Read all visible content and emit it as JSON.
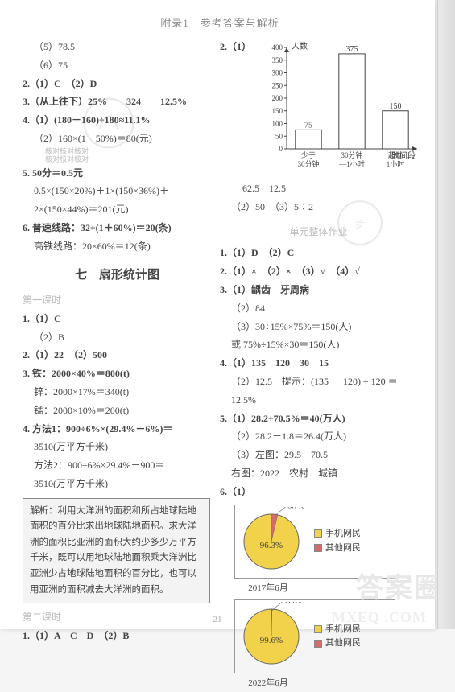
{
  "header": "附录1　参考答案与解析",
  "left": {
    "l1": "（5）78.5",
    "l2": "（6）75",
    "q2": "2.（1）C　（2）D",
    "q3": "3.（从上往下）25%　　324　　12.5%",
    "q4a": "4.（1）(180－160)÷180≈11.1%",
    "q4b": "（2）160×(1－50%)＝80(元)",
    "q4b_note1": "核对核对核对",
    "q4b_note2": "核对核对核对",
    "q5a": "5. 50分＝0.5元",
    "q5b": "0.5×(150×20%)＋1×(150×36%)＋",
    "q5c": "2×(150×44%)＝201(元)",
    "q6a": "6. 普速线路：32÷(1＋60%)＝20(条)",
    "q6b": "高铁线路：20×60%＝12(条)",
    "section": "七　扇形统计图",
    "k1": "第一课时",
    "p1a": "1.（1）C",
    "p1b": "（2）B",
    "p2": "2.（1）22　（2）500",
    "p3a": "3. 铁：2000×40%＝800(t)",
    "p3b": "锌：2000×17%＝340(t)",
    "p3c": "锰：2000×10%＝200(t)",
    "p4a": "4. 方法1：900÷6%×(29.4%－6%)＝",
    "p4b": "3510(万平方千米)",
    "p4c": "方法2：900÷6%×29.4%－900＝",
    "p4d": "3510(万平方千米)",
    "note": "解析：利用大洋洲的面积和所占地球陆地面积的百分比求出地球陆地面积。求大洋洲的面积比亚洲的面积大约少多少万平方千米，既可以用地球陆地面积乘大洋洲比亚洲少占地球陆地面积的百分比，也可以用亚洲的面积减去大洋洲的面积。",
    "k2": "第二课时",
    "p21": "1.（1）A　C　D　（2）B"
  },
  "right": {
    "q2label": "2.（1）",
    "barchart": {
      "ylab": "人数",
      "xlab": "时间段",
      "ymax": 400,
      "ystep": 50,
      "yticks": [
        "400",
        "350",
        "300",
        "250",
        "200",
        "150",
        "100",
        "50",
        "0"
      ],
      "bars": [
        {
          "cat1": "少于",
          "cat2": "30分钟",
          "val": 75,
          "lbl": "75",
          "color": "#ffffff"
        },
        {
          "cat1": "30分钟",
          "cat2": "—1小时",
          "val": 375,
          "lbl": "375",
          "color": "#ffffff"
        },
        {
          "cat1": "超过",
          "cat2": "1小时",
          "val": 150,
          "lbl": "150",
          "color": "#ffffff"
        }
      ]
    },
    "r1": "62.5　12.5",
    "r2": "（2）50　（3）5∶2",
    "unit": "单元整体作业",
    "u1": "1.（1）D　（2）C",
    "u2": "2.（1）×　（2）×　（3）√　（4）√",
    "u3a": "3.（1）龋齿　牙周病",
    "u3b": "（2）84",
    "u3c": "（3）30÷15%×75%＝150(人)",
    "u3d": "或 75%÷15%×30＝150(人)",
    "u4a": "4.（1）135　120　30　15",
    "u4b": "（2）12.5　提示：(135 － 120) ÷ 120 ＝",
    "u4c": "12.5%",
    "u5a": "5.（1）28.2÷70.5%＝40(万人)",
    "u5b": "（2）28.2－1.8＝26.4(万人)",
    "u5c": "（3）左图：29.5　70.5",
    "u5d": "右图：2022　农村　城镇",
    "u6": "6.（1）",
    "pie1": {
      "big": "96.3%",
      "small": "3.7%",
      "bigcolor": "#f2d24a",
      "smallcolor": "#d66b6b",
      "cap": "2017年6月"
    },
    "pie2": {
      "big": "99.6%",
      "small": "0.4%",
      "bigcolor": "#f2d24a",
      "smallcolor": "#d66b6b",
      "cap": "2022年6月"
    },
    "legend": {
      "a": "手机网民",
      "b": "其他网民",
      "ac": "#f2d24a",
      "bc": "#d66b6b"
    }
  },
  "pagefoot": "21",
  "answm": "答案圈",
  "mxwm": "MXEQ .COM"
}
